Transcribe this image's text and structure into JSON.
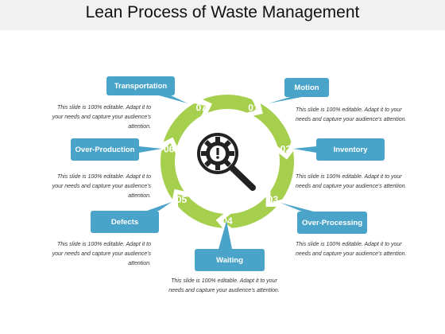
{
  "title": "Lean Process of Waste Management",
  "steps": [
    {
      "num": "01",
      "label": "Motion",
      "desc": "This slide is 100% editable. Adapt it to your needs and capture your audience's attention."
    },
    {
      "num": "02",
      "label": "Inventory",
      "desc": "This slide is 100% editable. Adapt it to your needs and capture your audience's attention."
    },
    {
      "num": "03",
      "label": "Over-Processing",
      "desc": "This slide is 100% editable. Adapt it to your needs and capture your audience's attention."
    },
    {
      "num": "04",
      "label": "Waiting",
      "desc": "This slide is 100% editable. Adapt it to your needs and capture your audience's attention."
    },
    {
      "num": "05",
      "label": "Defects",
      "desc": "This slide is 100% editable. Adapt it to your needs and capture your audience's attention."
    },
    {
      "num": "06",
      "label": "Over-Production",
      "desc": "This slide is 100% editable. Adapt it to your needs and capture your audience's attention."
    },
    {
      "num": "07",
      "label": "Transportation",
      "desc": "This slide is 100% editable. Adapt it to your needs and capture your audience's attention."
    }
  ],
  "center_icon": "magnifier-gear-exclamation-icon",
  "colors": {
    "ring": "#a5cf4c",
    "callout": "#4aa3c8",
    "title_bar": "#f1f1f1"
  }
}
